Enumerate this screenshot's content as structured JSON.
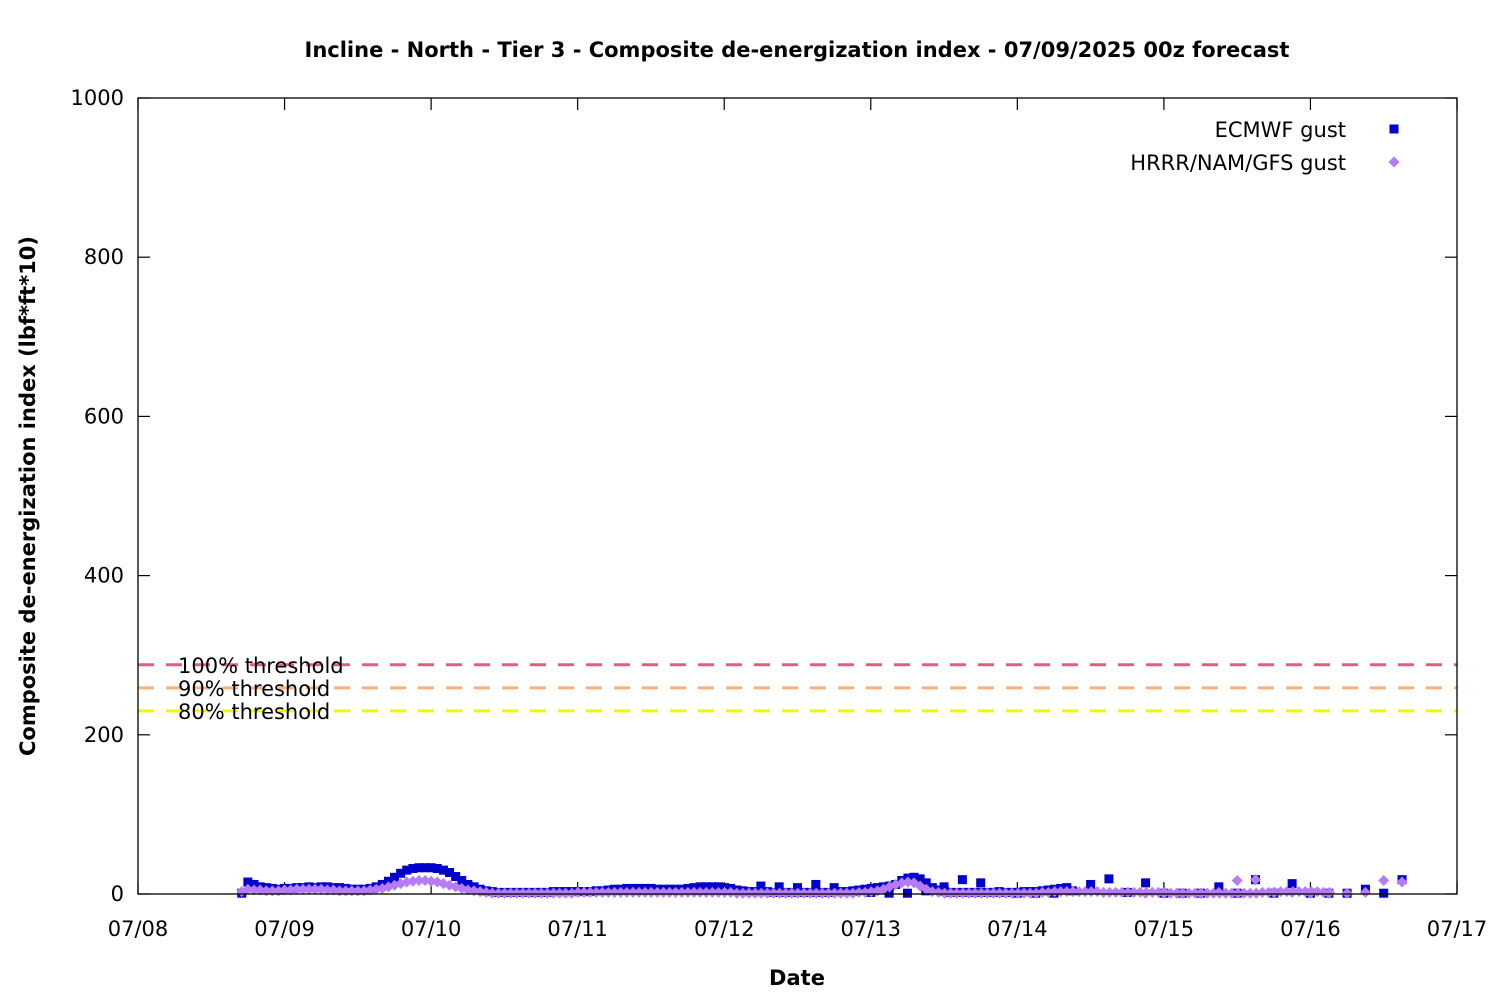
{
  "chart_data": {
    "type": "scatter",
    "title": "Incline - North - Tier 3 - Composite de-energization index - 07/09/2025 00z forecast",
    "xlabel": "Date",
    "ylabel": "Composite de-energization index (lbf*ft*10)",
    "x_ticks": [
      "07/08",
      "07/09",
      "07/10",
      "07/11",
      "07/12",
      "07/13",
      "07/14",
      "07/15",
      "07/16",
      "07/17"
    ],
    "x_range_days": [
      0,
      9
    ],
    "ylim": [
      0,
      1000
    ],
    "y_ticks": [
      0,
      200,
      400,
      600,
      800,
      1000
    ],
    "legend_position": "top-right",
    "thresholds": [
      {
        "label": "100% threshold",
        "value": 288,
        "color": "#e0607e"
      },
      {
        "label": "90% threshold",
        "value": 259,
        "color": "#ffb07a"
      },
      {
        "label": "80% threshold",
        "value": 230,
        "color": "#f5f500"
      }
    ],
    "series": [
      {
        "name": "ECMWF gust",
        "marker": "square",
        "color": "#0000cc",
        "hourly_start": 0.708,
        "hourly_step": 0.0417,
        "hourly_values": [
          1,
          15,
          12,
          9,
          8,
          7,
          6,
          7,
          7,
          8,
          8,
          9,
          8,
          9,
          9,
          8,
          8,
          7,
          6,
          6,
          6,
          7,
          9,
          12,
          16,
          21,
          26,
          30,
          32,
          33,
          33,
          33,
          32,
          30,
          27,
          22,
          17,
          12,
          9,
          6,
          4,
          3,
          2,
          2,
          2,
          2,
          2,
          2,
          2,
          2,
          2,
          3,
          3,
          3,
          3,
          3,
          3,
          3,
          4,
          4,
          5,
          6,
          6,
          7,
          7,
          7,
          7,
          7,
          6,
          6,
          6,
          6,
          6,
          7,
          8,
          9,
          9,
          9,
          9,
          8,
          7,
          5,
          4,
          3,
          3,
          3,
          3,
          2,
          2,
          2,
          2,
          2,
          2,
          2,
          2,
          2,
          2,
          3,
          3,
          3,
          4,
          5,
          6,
          7,
          8,
          9,
          10,
          12,
          17,
          20,
          21,
          19,
          14,
          8,
          5,
          3,
          2,
          2,
          2,
          2,
          2,
          2,
          2,
          2,
          2,
          2,
          2,
          2,
          3,
          3,
          3,
          4,
          5,
          6,
          7,
          8
        ],
        "sparse_x": [
          4.25,
          4.375,
          4.5,
          4.625,
          4.75,
          4.875,
          5.0,
          5.125,
          5.25,
          5.375,
          5.5,
          5.625,
          5.75,
          5.875,
          6.0,
          6.125,
          6.25,
          6.375,
          6.5,
          6.625,
          6.75,
          6.875,
          7.0,
          7.125,
          7.25,
          7.375,
          7.5,
          7.625,
          7.75,
          7.875,
          8.0,
          8.125,
          8.25,
          8.375,
          8.5,
          8.625
        ],
        "sparse_y": [
          10,
          9,
          8,
          12,
          8,
          3,
          2,
          1,
          1,
          4,
          9,
          18,
          14,
          3,
          1,
          1,
          1,
          4,
          12,
          19,
          2,
          14,
          1,
          1,
          1,
          9,
          1,
          18,
          1,
          13,
          1,
          1,
          1,
          6,
          1,
          18
        ]
      },
      {
        "name": "HRRR/NAM/GFS gust",
        "marker": "diamond",
        "color": "#b67cf5",
        "hourly_start": 0.708,
        "hourly_step": 0.0417,
        "hourly_values": [
          3,
          6,
          5,
          5,
          4,
          4,
          4,
          5,
          5,
          6,
          6,
          6,
          6,
          6,
          5,
          5,
          4,
          4,
          4,
          4,
          4,
          5,
          6,
          7,
          9,
          11,
          13,
          15,
          16,
          17,
          17,
          16,
          15,
          13,
          11,
          9,
          7,
          5,
          4,
          3,
          2,
          1,
          1,
          1,
          1,
          1,
          1,
          1,
          1,
          1,
          1,
          1,
          1,
          1,
          1,
          2,
          2,
          2,
          2,
          2,
          2,
          2,
          2,
          2,
          2,
          2,
          2,
          2,
          2,
          2,
          2,
          2,
          2,
          2,
          2,
          2,
          2,
          2,
          2,
          2,
          2,
          1,
          1,
          1,
          1,
          1,
          1,
          1,
          1,
          1,
          1,
          1,
          1,
          1,
          1,
          1,
          1,
          1,
          1,
          1,
          1,
          2,
          2,
          3,
          4,
          6,
          9,
          12,
          14,
          15,
          14,
          10,
          6,
          3,
          2,
          1,
          1,
          1,
          1,
          1,
          1,
          1,
          1,
          1,
          1,
          1,
          1,
          1,
          1,
          1,
          1,
          2,
          2,
          3,
          3,
          3,
          3,
          3,
          3,
          3,
          3,
          2,
          2,
          2,
          2,
          2,
          2,
          2,
          2,
          2,
          2,
          2,
          1,
          1,
          1,
          1,
          1,
          1,
          1,
          1,
          1,
          1,
          1,
          1,
          1,
          1,
          1,
          2,
          2,
          2,
          3,
          3,
          3,
          3,
          3,
          3,
          3,
          2,
          2
        ],
        "sparse_x": [
          6.875,
          7.0,
          7.125,
          7.25,
          7.375,
          7.5,
          7.625,
          7.75,
          7.875,
          8.0,
          8.125,
          8.25,
          8.375,
          8.5,
          8.625
        ],
        "sparse_y": [
          1,
          1,
          1,
          1,
          2,
          17,
          18,
          2,
          2,
          1,
          1,
          1,
          2,
          17,
          15
        ]
      }
    ]
  }
}
